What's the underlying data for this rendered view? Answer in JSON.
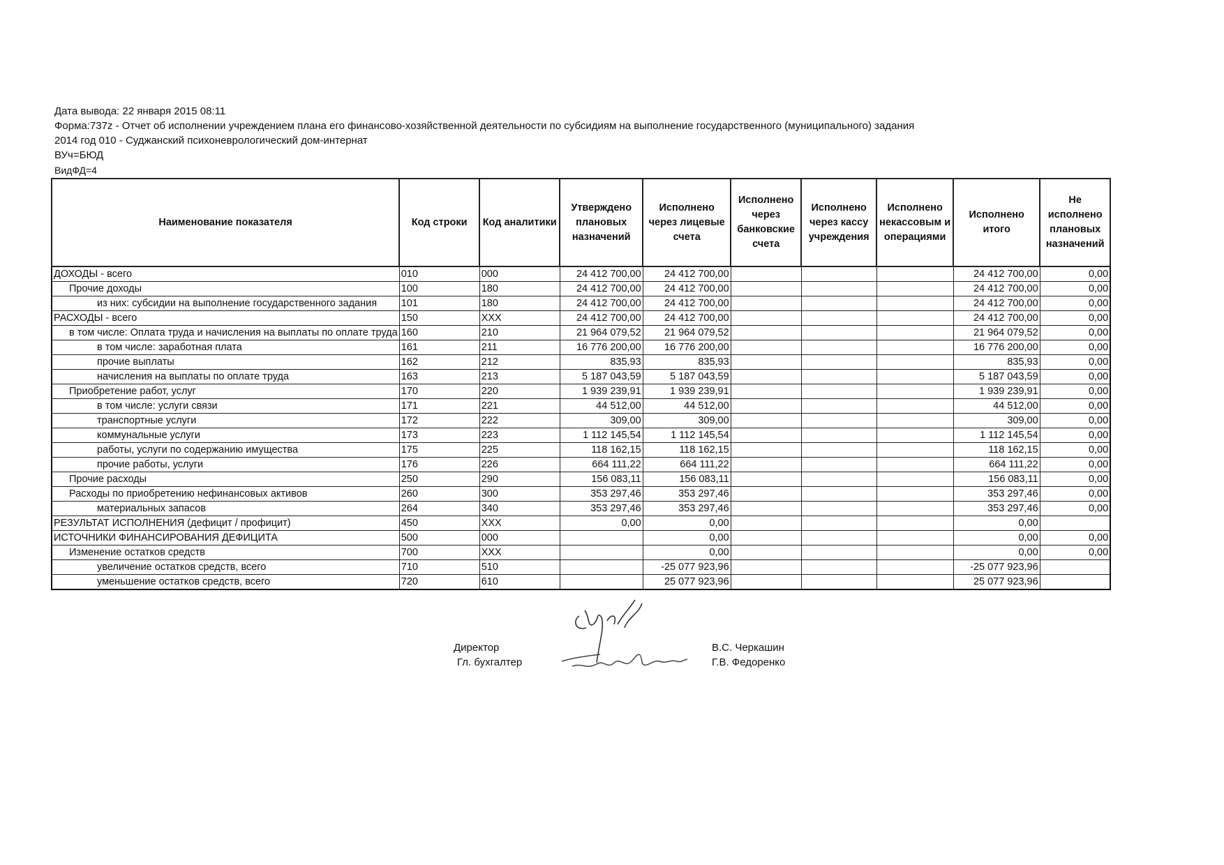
{
  "header": {
    "date_line": "Дата вывода: 22 января 2015 08:11",
    "form_line": "Форма:737z - Отчет об исполнении учреждением плана его финансово-хозяйственной деятельности по субсидиям на выполнение государственного (муниципального) задания",
    "org_line": "2014 год 010 - Суджанский психоневрологический дом-интернат",
    "vuch_line": "ВУч=БЮД",
    "vidfd_line": "ВидФД=4"
  },
  "table": {
    "columns": [
      "Наименование показателя",
      "Код строки",
      "Код аналитики",
      "Утверждено плановых назначений",
      "Исполнено через лицевые счета",
      "Исполнено через банковские счета",
      "Исполнено через кассу учреждения",
      "Исполнено некассовым и операциями",
      "Исполнено итого",
      "Не исполнено плановых назначений"
    ],
    "rows": [
      {
        "level": 0,
        "name": "ДОХОДЫ - всего",
        "code": "010",
        "analytic": "000",
        "planned": "24 412 700,00",
        "personal": "24 412 700,00",
        "bank": "",
        "cash": "",
        "noncash": "",
        "total": "24 412 700,00",
        "unfulfilled": "0,00"
      },
      {
        "level": 1,
        "name": "Прочие доходы",
        "code": "100",
        "analytic": "180",
        "planned": "24 412 700,00",
        "personal": "24 412 700,00",
        "bank": "",
        "cash": "",
        "noncash": "",
        "total": "24 412 700,00",
        "unfulfilled": "0,00"
      },
      {
        "level": 2,
        "name": "из них: субсидии на выполнение государственного задания",
        "code": "101",
        "analytic": "180",
        "planned": "24 412 700,00",
        "personal": "24 412 700,00",
        "bank": "",
        "cash": "",
        "noncash": "",
        "total": "24 412 700,00",
        "unfulfilled": "0,00"
      },
      {
        "level": 0,
        "name": "РАСХОДЫ - всего",
        "code": "150",
        "analytic": "XXX",
        "planned": "24 412 700,00",
        "personal": "24 412 700,00",
        "bank": "",
        "cash": "",
        "noncash": "",
        "total": "24 412 700,00",
        "unfulfilled": "0,00"
      },
      {
        "level": 1,
        "name": "в том числе:  Оплата труда и начисления на выплаты по оплате труда",
        "code": "160",
        "analytic": "210",
        "planned": "21 964 079,52",
        "personal": "21 964 079,52",
        "bank": "",
        "cash": "",
        "noncash": "",
        "total": "21 964 079,52",
        "unfulfilled": "0,00"
      },
      {
        "level": 2,
        "name": "в том числе:  заработная плата",
        "code": "161",
        "analytic": "211",
        "planned": "16 776 200,00",
        "personal": "16 776 200,00",
        "bank": "",
        "cash": "",
        "noncash": "",
        "total": "16 776 200,00",
        "unfulfilled": "0,00"
      },
      {
        "level": 2,
        "name": "прочие выплаты",
        "code": "162",
        "analytic": "212",
        "planned": "835,93",
        "personal": "835,93",
        "bank": "",
        "cash": "",
        "noncash": "",
        "total": "835,93",
        "unfulfilled": "0,00"
      },
      {
        "level": 2,
        "name": "начисления на выплаты по оплате труда",
        "code": "163",
        "analytic": "213",
        "planned": "5 187 043,59",
        "personal": "5 187 043,59",
        "bank": "",
        "cash": "",
        "noncash": "",
        "total": "5 187 043,59",
        "unfulfilled": "0,00"
      },
      {
        "level": 1,
        "name": "Приобретение работ, услуг",
        "code": "170",
        "analytic": "220",
        "planned": "1 939 239,91",
        "personal": "1 939 239,91",
        "bank": "",
        "cash": "",
        "noncash": "",
        "total": "1 939 239,91",
        "unfulfilled": "0,00"
      },
      {
        "level": 2,
        "name": "в том числе: услуги связи",
        "code": "171",
        "analytic": "221",
        "planned": "44 512,00",
        "personal": "44 512,00",
        "bank": "",
        "cash": "",
        "noncash": "",
        "total": "44 512,00",
        "unfulfilled": "0,00"
      },
      {
        "level": 2,
        "name": "транспортные услуги",
        "code": "172",
        "analytic": "222",
        "planned": "309,00",
        "personal": "309,00",
        "bank": "",
        "cash": "",
        "noncash": "",
        "total": "309,00",
        "unfulfilled": "0,00"
      },
      {
        "level": 2,
        "name": "коммунальные услуги",
        "code": "173",
        "analytic": "223",
        "planned": "1 112 145,54",
        "personal": "1 112 145,54",
        "bank": "",
        "cash": "",
        "noncash": "",
        "total": "1 112 145,54",
        "unfulfilled": "0,00"
      },
      {
        "level": 2,
        "name": "работы, услуги по содержанию имущества",
        "code": "175",
        "analytic": "225",
        "planned": "118 162,15",
        "personal": "118 162,15",
        "bank": "",
        "cash": "",
        "noncash": "",
        "total": "118 162,15",
        "unfulfilled": "0,00"
      },
      {
        "level": 2,
        "name": "прочие работы, услуги",
        "code": "176",
        "analytic": "226",
        "planned": "664 111,22",
        "personal": "664 111,22",
        "bank": "",
        "cash": "",
        "noncash": "",
        "total": "664 111,22",
        "unfulfilled": "0,00"
      },
      {
        "level": 1,
        "name": "Прочие расходы",
        "code": "250",
        "analytic": "290",
        "planned": "156 083,11",
        "personal": "156 083,11",
        "bank": "",
        "cash": "",
        "noncash": "",
        "total": "156 083,11",
        "unfulfilled": "0,00"
      },
      {
        "level": 1,
        "name": "Расходы по приобретению нефинансовых активов",
        "code": "260",
        "analytic": "300",
        "planned": "353 297,46",
        "personal": "353 297,46",
        "bank": "",
        "cash": "",
        "noncash": "",
        "total": "353 297,46",
        "unfulfilled": "0,00"
      },
      {
        "level": 2,
        "name": "материальных запасов",
        "code": "264",
        "analytic": "340",
        "planned": "353 297,46",
        "personal": "353 297,46",
        "bank": "",
        "cash": "",
        "noncash": "",
        "total": "353 297,46",
        "unfulfilled": "0,00"
      },
      {
        "level": 0,
        "name": "РЕЗУЛЬТАТ ИСПОЛНЕНИЯ (дефицит / профицит)",
        "code": "450",
        "analytic": "XXX",
        "planned": "0,00",
        "personal": "0,00",
        "bank": "",
        "cash": "",
        "noncash": "",
        "total": "0,00",
        "unfulfilled": ""
      },
      {
        "level": 0,
        "name": "ИСТОЧНИКИ ФИНАНСИРОВАНИЯ ДЕФИЦИТА",
        "code": "500",
        "analytic": "000",
        "planned": "",
        "personal": "0,00",
        "bank": "",
        "cash": "",
        "noncash": "",
        "total": "0,00",
        "unfulfilled": "0,00"
      },
      {
        "level": 1,
        "name": "Изменение остатков средств",
        "code": "700",
        "analytic": "XXX",
        "planned": "",
        "personal": "0,00",
        "bank": "",
        "cash": "",
        "noncash": "",
        "total": "0,00",
        "unfulfilled": "0,00"
      },
      {
        "level": 2,
        "name": "увеличение остатков средств, всего",
        "code": "710",
        "analytic": "510",
        "planned": "",
        "personal": "-25 077 923,96",
        "bank": "",
        "cash": "",
        "noncash": "",
        "total": "-25 077 923,96",
        "unfulfilled": ""
      },
      {
        "level": 2,
        "name": "уменьшение остатков средств, всего",
        "code": "720",
        "analytic": "610",
        "planned": "",
        "personal": "25 077 923,96",
        "bank": "",
        "cash": "",
        "noncash": "",
        "total": "25 077 923,96",
        "unfulfilled": ""
      }
    ]
  },
  "signatures": {
    "director_label": "Директор",
    "accountant_label": "Гл. бухгалтер",
    "director_name": "В.С. Черкашин",
    "accountant_name": "Г.В.  Федоренко"
  }
}
